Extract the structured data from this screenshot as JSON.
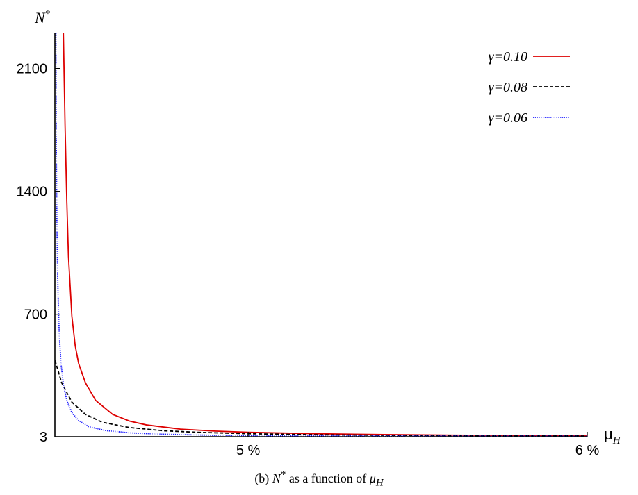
{
  "chart_data": {
    "type": "line",
    "xlabel": "μ",
    "xlabel_sub": "H",
    "ylabel": "N",
    "ylabel_sup": "*",
    "xlim": [
      0.0443,
      0.06
    ],
    "ylim": [
      3,
      2300
    ],
    "x_ticks": [
      {
        "value": 0.05,
        "label": "5 %"
      },
      {
        "value": 0.06,
        "label": "6 %"
      }
    ],
    "y_ticks": [
      {
        "value": 3,
        "label": "3"
      },
      {
        "value": 700,
        "label": "700"
      },
      {
        "value": 1400,
        "label": "1400"
      },
      {
        "value": 2100,
        "label": "2100"
      }
    ],
    "grid": false,
    "legend_position": "top-right",
    "series": [
      {
        "name": "γ=0.10",
        "color": "#dd0000",
        "dash": "solid",
        "x": [
          0.04455,
          0.0446,
          0.04465,
          0.0447,
          0.0448,
          0.0449,
          0.045,
          0.0452,
          0.0455,
          0.046,
          0.0465,
          0.047,
          0.048,
          0.049,
          0.05,
          0.052,
          0.054,
          0.056,
          0.058,
          0.06
        ],
        "values": [
          2300,
          1770,
          1350,
          1030,
          690,
          520,
          420,
          310,
          210,
          130,
          92,
          70,
          46,
          35,
          28,
          20,
          15,
          12,
          10,
          9
        ]
      },
      {
        "name": "γ=0.08",
        "color": "#000000",
        "dash": "dashed",
        "x": [
          0.0439,
          0.04395,
          0.044,
          0.0441,
          0.0442,
          0.0443,
          0.0445,
          0.0448,
          0.0452,
          0.0457,
          0.0465,
          0.0475,
          0.0485,
          0.05,
          0.052,
          0.054,
          0.056,
          0.06
        ],
        "values": [
          2300,
          1650,
          1200,
          790,
          570,
          440,
          310,
          200,
          130,
          85,
          55,
          37,
          28,
          20,
          14,
          11,
          9,
          7
        ]
      },
      {
        "name": "γ=0.06",
        "color": "#1a1aff",
        "dash": "dotted",
        "x": [
          0.04433,
          0.04434,
          0.04436,
          0.04438,
          0.0444,
          0.04443,
          0.04448,
          0.04455,
          0.04465,
          0.0448,
          0.045,
          0.0453,
          0.0458,
          0.0465,
          0.0475,
          0.049,
          0.051,
          0.054,
          0.06
        ],
        "values": [
          2300,
          1700,
          1200,
          940,
          760,
          580,
          420,
          300,
          210,
          140,
          95,
          60,
          38,
          25,
          17,
          11,
          8,
          6,
          5
        ]
      }
    ]
  },
  "caption": {
    "prefix": "(b)  ",
    "n": "N",
    "n_sup": "*",
    "mid": " as a function of ",
    "mu": "μ",
    "mu_sub": "H"
  }
}
